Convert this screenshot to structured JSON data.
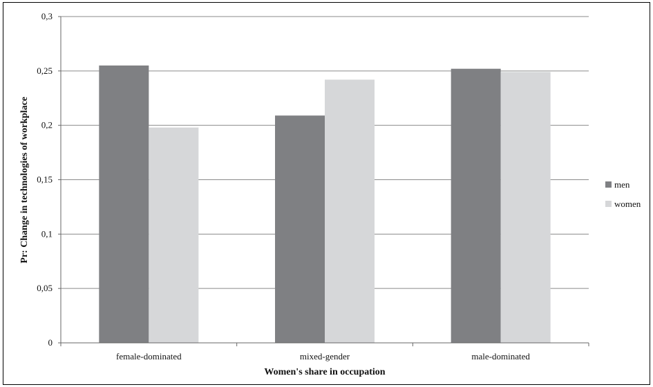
{
  "chart_data": {
    "type": "bar",
    "title": "",
    "xlabel": "Women's share in occupation",
    "ylabel": "Pr: Change in technologies of workplace",
    "categories": [
      "female-dominated",
      "mixed-gender",
      "male-dominated"
    ],
    "series": [
      {
        "name": "men",
        "values": [
          0.255,
          0.209,
          0.252
        ],
        "color": "#7f8083"
      },
      {
        "name": "women",
        "values": [
          0.198,
          0.242,
          0.249
        ],
        "color": "#d6d7d9"
      }
    ],
    "ylim": [
      0,
      0.3
    ],
    "yticks": [
      0,
      0.05,
      0.1,
      0.15,
      0.2,
      0.25,
      0.3
    ],
    "ytick_labels": [
      "0",
      "0,05",
      "0,1",
      "0,15",
      "0,2",
      "0,25",
      "0,3"
    ],
    "grid": true,
    "legend_position": "right"
  }
}
